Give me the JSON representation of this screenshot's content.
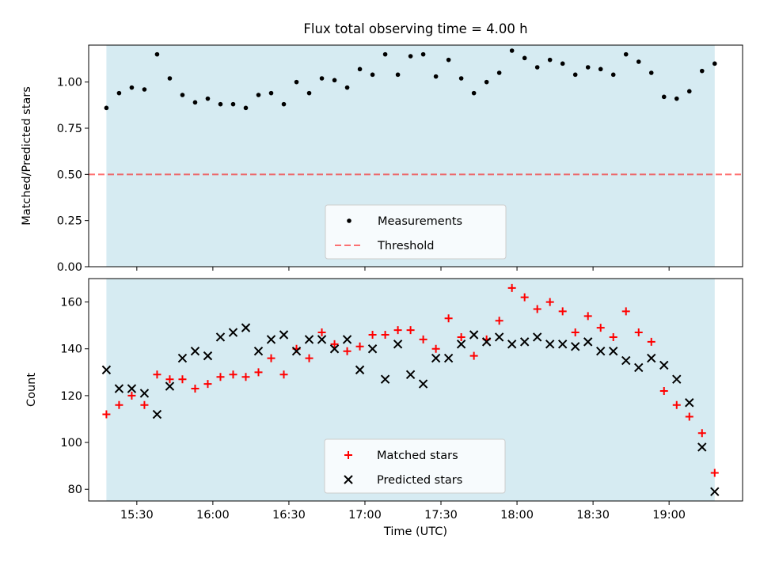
{
  "figure": {
    "title": "Flux total observing time = 4.00 h"
  },
  "colors": {
    "span": "#add8e6",
    "measurement": "#000000",
    "threshold": "#ff0000",
    "matched": "#ff0000",
    "predicted": "#000000"
  },
  "chart_data": [
    {
      "type": "scatter",
      "title": "Flux total observing time = 4.00 h",
      "ylabel": "Matched/Predicted stars",
      "xlabel": "",
      "xlim": [
        "15:11",
        "19:29"
      ],
      "ylim": [
        0,
        1.2
      ],
      "yticks": [
        "0.00",
        "0.25",
        "0.50",
        "0.75",
        "1.00"
      ],
      "shaded_span": [
        "15:18",
        "19:18"
      ],
      "threshold": 0.5,
      "legend": [
        "Measurements",
        "Threshold"
      ],
      "legend_position": "lower-center",
      "x": [
        "15:18",
        "15:23",
        "15:28",
        "15:33",
        "15:38",
        "15:43",
        "15:48",
        "15:53",
        "15:58",
        "16:03",
        "16:08",
        "16:13",
        "16:18",
        "16:23",
        "16:28",
        "16:33",
        "16:38",
        "16:43",
        "16:48",
        "16:53",
        "16:58",
        "17:03",
        "17:08",
        "17:13",
        "17:18",
        "17:23",
        "17:28",
        "17:33",
        "17:38",
        "17:43",
        "17:48",
        "17:53",
        "17:58",
        "18:03",
        "18:08",
        "18:13",
        "18:18",
        "18:23",
        "18:28",
        "18:33",
        "18:38",
        "18:43",
        "18:48",
        "18:53",
        "18:58",
        "19:03",
        "19:08",
        "19:13",
        "19:18"
      ],
      "series": [
        {
          "name": "Measurements",
          "values": [
            0.86,
            0.94,
            0.97,
            0.96,
            1.15,
            1.02,
            0.93,
            0.89,
            0.91,
            0.88,
            0.88,
            0.86,
            0.93,
            0.94,
            0.88,
            1.0,
            0.94,
            1.02,
            1.01,
            0.97,
            1.07,
            1.04,
            1.15,
            1.04,
            1.14,
            1.15,
            1.03,
            1.12,
            1.02,
            0.94,
            1.0,
            1.05,
            1.17,
            1.13,
            1.08,
            1.12,
            1.1,
            1.04,
            1.08,
            1.07,
            1.04,
            1.15,
            1.11,
            1.05,
            0.92,
            0.91,
            0.95,
            1.06,
            1.1
          ]
        }
      ]
    },
    {
      "type": "scatter",
      "title": "",
      "ylabel": "Count",
      "xlabel": "Time (UTC)",
      "xlim": [
        "15:11",
        "19:29"
      ],
      "ylim": [
        75,
        170
      ],
      "yticks": [
        "80",
        "100",
        "120",
        "140",
        "160"
      ],
      "xticks": [
        "15:30",
        "16:00",
        "16:30",
        "17:00",
        "17:30",
        "18:00",
        "18:30",
        "19:00"
      ],
      "shaded_span": [
        "15:18",
        "19:18"
      ],
      "legend": [
        "Matched stars",
        "Predicted stars"
      ],
      "legend_position": "lower-center",
      "x": [
        "15:18",
        "15:23",
        "15:28",
        "15:33",
        "15:38",
        "15:43",
        "15:48",
        "15:53",
        "15:58",
        "16:03",
        "16:08",
        "16:13",
        "16:18",
        "16:23",
        "16:28",
        "16:33",
        "16:38",
        "16:43",
        "16:48",
        "16:53",
        "16:58",
        "17:03",
        "17:08",
        "17:13",
        "17:18",
        "17:23",
        "17:28",
        "17:33",
        "17:38",
        "17:43",
        "17:48",
        "17:53",
        "17:58",
        "18:03",
        "18:08",
        "18:13",
        "18:18",
        "18:23",
        "18:28",
        "18:33",
        "18:38",
        "18:43",
        "18:48",
        "18:53",
        "18:58",
        "19:03",
        "19:08",
        "19:13",
        "19:18"
      ],
      "series": [
        {
          "name": "Matched stars",
          "values": [
            112,
            116,
            120,
            116,
            129,
            127,
            127,
            123,
            125,
            128,
            129,
            128,
            130,
            136,
            129,
            140,
            136,
            147,
            142,
            139,
            141,
            146,
            146,
            148,
            148,
            144,
            140,
            153,
            145,
            137,
            144,
            152,
            166,
            162,
            157,
            160,
            156,
            147,
            154,
            149,
            145,
            156,
            147,
            143,
            122,
            116,
            111,
            104,
            87
          ]
        },
        {
          "name": "Predicted stars",
          "values": [
            131,
            123,
            123,
            121,
            112,
            124,
            136,
            139,
            137,
            145,
            147,
            149,
            139,
            144,
            146,
            139,
            144,
            144,
            140,
            144,
            131,
            140,
            127,
            142,
            129,
            125,
            136,
            136,
            142,
            146,
            143,
            145,
            142,
            143,
            145,
            142,
            142,
            141,
            143,
            139,
            139,
            135,
            132,
            136,
            133,
            127,
            117,
            98,
            79
          ]
        }
      ]
    }
  ]
}
